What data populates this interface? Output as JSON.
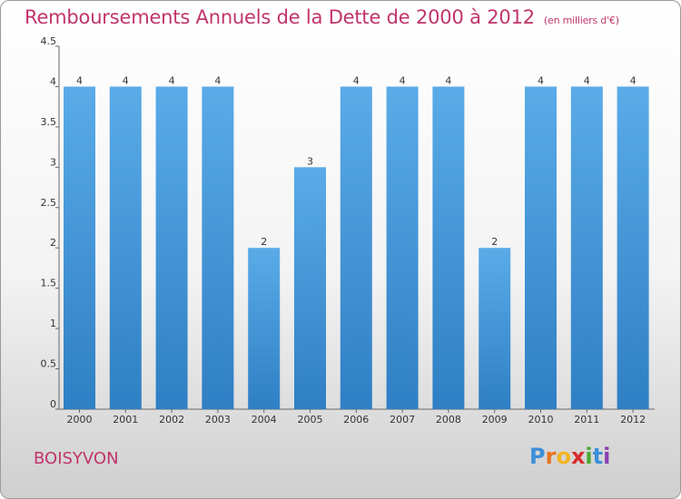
{
  "header": {
    "title": "Remboursements Annuels de la Dette de 2000 à 2012",
    "unit": "(en milliers d'€)"
  },
  "footer": {
    "commune": "BOISYVON",
    "logo_letters": [
      "P",
      "r",
      "o",
      "x",
      "i",
      "t",
      "i"
    ],
    "logo_colors": [
      "#3a8fd8",
      "#e8731f",
      "#f2b51d",
      "#d62b2b",
      "#4aa832",
      "#3a8fd8",
      "#8a3fb0"
    ]
  },
  "colors": {
    "bar": "#4f9fe0",
    "axis": "#666666",
    "title": "#c0346a"
  },
  "chart_data": {
    "type": "bar",
    "categories": [
      "2000",
      "2001",
      "2002",
      "2003",
      "2004",
      "2005",
      "2006",
      "2007",
      "2008",
      "2009",
      "2010",
      "2011",
      "2012"
    ],
    "values": [
      4,
      4,
      4,
      4,
      2,
      3,
      4,
      4,
      4,
      2,
      4,
      4,
      4
    ],
    "data_labels": [
      "4",
      "4",
      "4",
      "4",
      "2",
      "3",
      "4",
      "4",
      "4",
      "2",
      "4",
      "4",
      "4"
    ],
    "yticks": [
      0,
      0.5,
      1,
      1.5,
      2,
      2.5,
      3,
      3.5,
      4,
      4.5
    ],
    "ytick_labels": [
      "0",
      "0.5",
      "1",
      "1.5",
      "2",
      "2.5",
      "3",
      "3.5",
      "4",
      "4.5"
    ],
    "ylim": [
      0,
      4.5
    ],
    "grid": false
  }
}
